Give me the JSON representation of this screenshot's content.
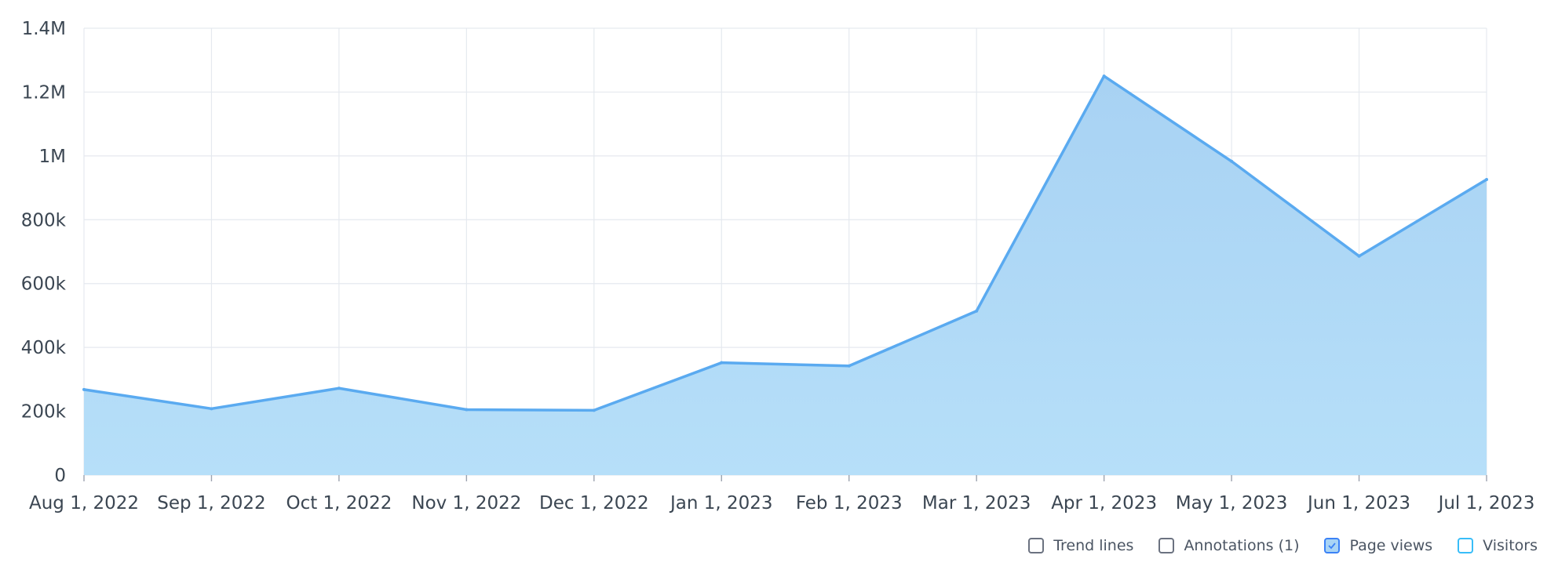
{
  "chart_data": {
    "type": "area",
    "x": [
      "Aug 1, 2022",
      "Sep 1, 2022",
      "Oct 1, 2022",
      "Nov 1, 2022",
      "Dec 1, 2022",
      "Jan 1, 2023",
      "Feb 1, 2023",
      "Mar 1, 2023",
      "Apr 1, 2023",
      "May 1, 2023",
      "Jun 1, 2023",
      "Jul 1, 2023"
    ],
    "series": [
      {
        "name": "Page views",
        "values": [
          268000,
          208000,
          272000,
          205000,
          203000,
          352000,
          342000,
          514000,
          1250000,
          983000,
          686000,
          926000
        ],
        "color": "#5aaaf0",
        "fill": "#acd8f5"
      }
    ],
    "yticks": [
      {
        "value": 0,
        "label": "0"
      },
      {
        "value": 200000,
        "label": "200k"
      },
      {
        "value": 400000,
        "label": "400k"
      },
      {
        "value": 600000,
        "label": "600k"
      },
      {
        "value": 800000,
        "label": "800k"
      },
      {
        "value": 1000000,
        "label": "1M"
      },
      {
        "value": 1200000,
        "label": "1.2M"
      },
      {
        "value": 1400000,
        "label": "1.4M"
      }
    ],
    "ylim": [
      0,
      1400000
    ],
    "grid": true,
    "title": "",
    "xlabel": "",
    "ylabel": "",
    "legend_position": "bottom-right"
  },
  "legend": {
    "items": [
      {
        "label": "Trend lines",
        "checked": false
      },
      {
        "label": "Annotations (1)",
        "checked": false
      },
      {
        "label": "Page views",
        "checked": true
      },
      {
        "label": "Visitors",
        "checked": false
      }
    ]
  }
}
